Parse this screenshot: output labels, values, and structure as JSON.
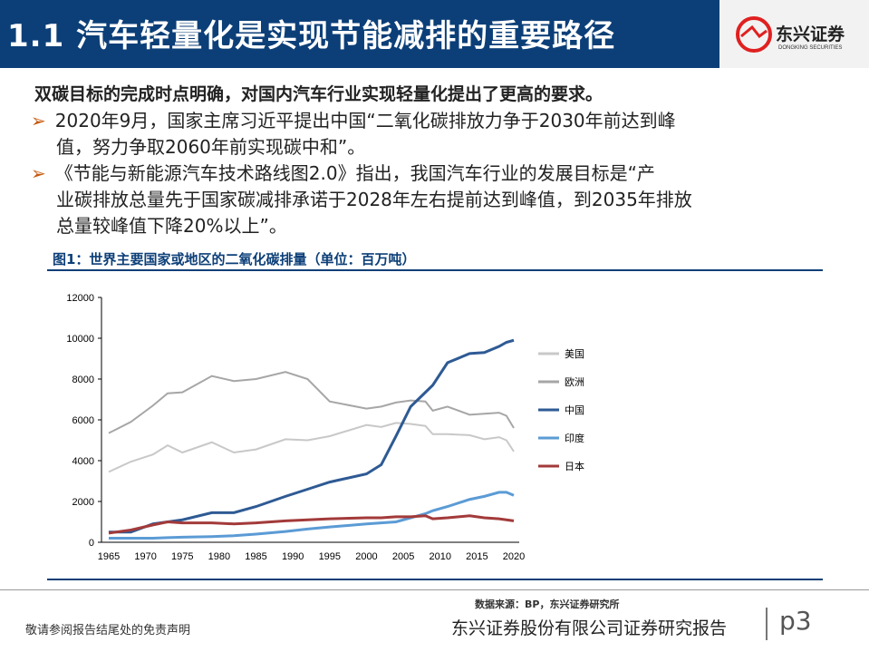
{
  "header": {
    "title": "1.1 汽车轻量化是实现节能减排的重要路径",
    "logo_cn": "东兴证券",
    "logo_en": "DONGKING SECURITIES"
  },
  "body": {
    "lead": "双碳目标的完成时点明确，对国内汽车行业实现轻量化提出了更高的要求。",
    "bullets": [
      [
        "2020年9月，国家主席习近平提出中国“二氧化碳排放力争于2030年前达到峰",
        "值，努力争取2060年前实现碳中和”。"
      ],
      [
        "《节能与新能源汽车技术路线图2.0》指出，我国汽车行业的发展目标是“产",
        "业碳排放总量先于国家碳减排承诺于2028年左右提前达到峰值，到2035年排放",
        "总量较峰值下降20%以上”。"
      ]
    ],
    "bullet_icon": "arrow-right-icon"
  },
  "figure": {
    "title": "图1：世界主要国家或地区的二氧化碳排量（单位：百万吨）",
    "source": "数据来源：BP，东兴证券研究所"
  },
  "chart_data": {
    "type": "line",
    "ylim": [
      0,
      12000
    ],
    "yticks": [
      0,
      2000,
      4000,
      6000,
      8000,
      10000,
      12000
    ],
    "xticks": [
      1965,
      1970,
      1975,
      1980,
      1985,
      1990,
      1995,
      2000,
      2005,
      2010,
      2015,
      2020
    ],
    "legend_position": "right",
    "x": [
      1965,
      1968,
      1971,
      1973,
      1975,
      1979,
      1982,
      1985,
      1989,
      1992,
      1995,
      2000,
      2002,
      2004,
      2006,
      2008,
      2009,
      2011,
      2014,
      2016,
      2018,
      2019,
      2020
    ],
    "series": [
      {
        "name": "美国",
        "color": "#c8c8c8",
        "values": [
          3450,
          3950,
          4300,
          4750,
          4400,
          4900,
          4400,
          4550,
          5050,
          5000,
          5200,
          5750,
          5650,
          5850,
          5800,
          5700,
          5300,
          5300,
          5250,
          5050,
          5150,
          5000,
          4450
        ]
      },
      {
        "name": "欧洲",
        "color": "#a6a6a6",
        "values": [
          5350,
          5900,
          6700,
          7300,
          7350,
          8150,
          7900,
          8000,
          8350,
          8000,
          6900,
          6550,
          6650,
          6850,
          6950,
          6900,
          6450,
          6650,
          6250,
          6300,
          6350,
          6200,
          5600
        ]
      },
      {
        "name": "中国",
        "color": "#2e5a94",
        "values": [
          500,
          500,
          900,
          1000,
          1100,
          1450,
          1450,
          1750,
          2250,
          2600,
          2950,
          3350,
          3800,
          5200,
          6650,
          7350,
          7700,
          8800,
          9250,
          9300,
          9600,
          9800,
          9900
        ]
      },
      {
        "name": "印度",
        "color": "#5b9bd5",
        "values": [
          200,
          200,
          200,
          230,
          250,
          280,
          320,
          400,
          530,
          650,
          750,
          900,
          950,
          1000,
          1200,
          1400,
          1550,
          1750,
          2100,
          2250,
          2450,
          2450,
          2300
        ]
      },
      {
        "name": "日本",
        "color": "#a33a3a",
        "values": [
          450,
          600,
          850,
          1000,
          950,
          950,
          900,
          950,
          1050,
          1100,
          1150,
          1200,
          1200,
          1250,
          1250,
          1300,
          1150,
          1200,
          1300,
          1200,
          1150,
          1100,
          1050
        ]
      }
    ]
  },
  "footer": {
    "disclaimer": "敬请参阅报告结尾处的免责声明",
    "company": "东兴证券股份有限公司证券研究报告",
    "page": "p3"
  }
}
